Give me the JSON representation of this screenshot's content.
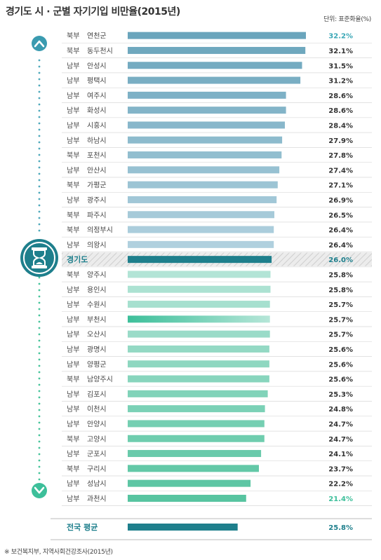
{
  "title": "경기도 시 · 군별 자기기입 비만율(2015년)",
  "unit_label": "단위: 표준화율(%)",
  "source": "※ 보건복지부, 지역사회건강조사(2015년)",
  "colors": {
    "top_group": "#7fb0c4",
    "gyeonggi": "#1e7f8c",
    "bottom_group": "#8fd3c0",
    "highlight_text": "#3aa7b6",
    "low_text": "#3dbf9a",
    "national": "#1e7f8c"
  },
  "icons": {
    "up": "up-arrow-icon",
    "center": "hourglass-icon",
    "down": "down-arrow-icon"
  },
  "chart_data": {
    "type": "bar",
    "orientation": "horizontal",
    "xlim": [
      0,
      32.2
    ],
    "rows": [
      {
        "region": "북부",
        "name": "연천군",
        "value": 32.2,
        "label": "32.2%"
      },
      {
        "region": "북부",
        "name": "동두천시",
        "value": 32.1,
        "label": "32.1%"
      },
      {
        "region": "남부",
        "name": "안성시",
        "value": 31.5,
        "label": "31.5%"
      },
      {
        "region": "남부",
        "name": "평택시",
        "value": 31.2,
        "label": "31.2%"
      },
      {
        "region": "남부",
        "name": "여주시",
        "value": 28.6,
        "label": "28.6%"
      },
      {
        "region": "남부",
        "name": "화성시",
        "value": 28.6,
        "label": "28.6%"
      },
      {
        "region": "남부",
        "name": "시흥시",
        "value": 28.4,
        "label": "28.4%"
      },
      {
        "region": "남부",
        "name": "하남시",
        "value": 27.9,
        "label": "27.9%"
      },
      {
        "region": "북부",
        "name": "포천시",
        "value": 27.8,
        "label": "27.8%"
      },
      {
        "region": "남부",
        "name": "안산시",
        "value": 27.4,
        "label": "27.4%"
      },
      {
        "region": "북부",
        "name": "가평군",
        "value": 27.1,
        "label": "27.1%"
      },
      {
        "region": "남부",
        "name": "광주시",
        "value": 26.9,
        "label": "26.9%"
      },
      {
        "region": "북부",
        "name": "파주시",
        "value": 26.5,
        "label": "26.5%"
      },
      {
        "region": "북부",
        "name": "의정부시",
        "value": 26.4,
        "label": "26.4%"
      },
      {
        "region": "남부",
        "name": "의왕시",
        "value": 26.4,
        "label": "26.4%"
      },
      {
        "region": "",
        "name": "경기도",
        "value": 26.0,
        "label": "26.0%",
        "highlight": true
      },
      {
        "region": "북부",
        "name": "양주시",
        "value": 25.8,
        "label": "25.8%"
      },
      {
        "region": "남부",
        "name": "용인시",
        "value": 25.8,
        "label": "25.8%"
      },
      {
        "region": "남부",
        "name": "수원시",
        "value": 25.7,
        "label": "25.7%"
      },
      {
        "region": "남부",
        "name": "부천시",
        "value": 25.7,
        "label": "25.7%"
      },
      {
        "region": "남부",
        "name": "오산시",
        "value": 25.7,
        "label": "25.7%"
      },
      {
        "region": "남부",
        "name": "광명시",
        "value": 25.6,
        "label": "25.6%"
      },
      {
        "region": "남부",
        "name": "양평군",
        "value": 25.6,
        "label": "25.6%"
      },
      {
        "region": "북부",
        "name": "남양주시",
        "value": 25.6,
        "label": "25.6%"
      },
      {
        "region": "남부",
        "name": "김포시",
        "value": 25.3,
        "label": "25.3%"
      },
      {
        "region": "남부",
        "name": "이천시",
        "value": 24.8,
        "label": "24.8%"
      },
      {
        "region": "남부",
        "name": "안양시",
        "value": 24.7,
        "label": "24.7%"
      },
      {
        "region": "북부",
        "name": "고양시",
        "value": 24.7,
        "label": "24.7%"
      },
      {
        "region": "남부",
        "name": "군포시",
        "value": 24.1,
        "label": "24.1%"
      },
      {
        "region": "북부",
        "name": "구리시",
        "value": 23.7,
        "label": "23.7%"
      },
      {
        "region": "남부",
        "name": "성남시",
        "value": 22.2,
        "label": "22.2%"
      },
      {
        "region": "남부",
        "name": "과천시",
        "value": 21.4,
        "label": "21.4%"
      }
    ],
    "national": {
      "name": "전국 평균",
      "value": 25.8,
      "label": "25.8%"
    }
  }
}
